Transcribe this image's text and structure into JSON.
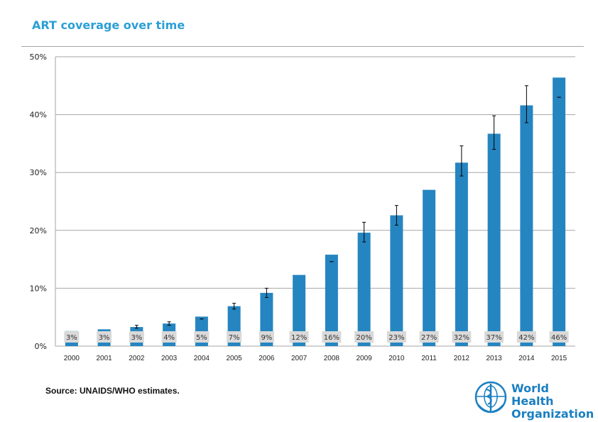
{
  "slide": {
    "title": "ART coverage over time",
    "source": "Source: UNAIDS/WHO estimates.",
    "logo_line1": "World Health",
    "logo_line2": "Organization"
  },
  "colors": {
    "bar": "#2585c0",
    "title": "#2b9fd6",
    "label_box": "#d9d9d9",
    "logo": "#1a7fc1"
  },
  "chart_data": {
    "type": "bar",
    "categories": [
      "2000",
      "2001",
      "2002",
      "2003",
      "2004",
      "2005",
      "2006",
      "2007",
      "2008",
      "2009",
      "2010",
      "2011",
      "2012",
      "2013",
      "2014",
      "2015"
    ],
    "values": [
      2.6,
      2.9,
      3.3,
      3.9,
      5.1,
      6.9,
      9.2,
      12.3,
      15.8,
      19.6,
      22.6,
      27.0,
      31.7,
      36.7,
      41.6,
      46.4
    ],
    "data_labels": [
      "3%",
      "3%",
      "3%",
      "4%",
      "5%",
      "7%",
      "9%",
      "12%",
      "16%",
      "20%",
      "23%",
      "27%",
      "32%",
      "37%",
      "42%",
      "46%"
    ],
    "error_low": [
      null,
      null,
      3.1,
      3.6,
      4.7,
      6.4,
      8.4,
      null,
      14.6,
      18.0,
      20.9,
      null,
      29.4,
      34.0,
      38.6,
      43.0
    ],
    "error_high": [
      null,
      3.1,
      3.6,
      4.2,
      4.7,
      7.4,
      10.0,
      null,
      14.6,
      21.4,
      24.3,
      null,
      34.6,
      39.8,
      45.0,
      43.0
    ],
    "ylim": [
      0,
      50
    ],
    "yticks": [
      "0%",
      "10%",
      "20%",
      "30%",
      "40%",
      "50%"
    ],
    "grid": true,
    "title": "ART coverage over time",
    "xlabel": "",
    "ylabel": ""
  }
}
